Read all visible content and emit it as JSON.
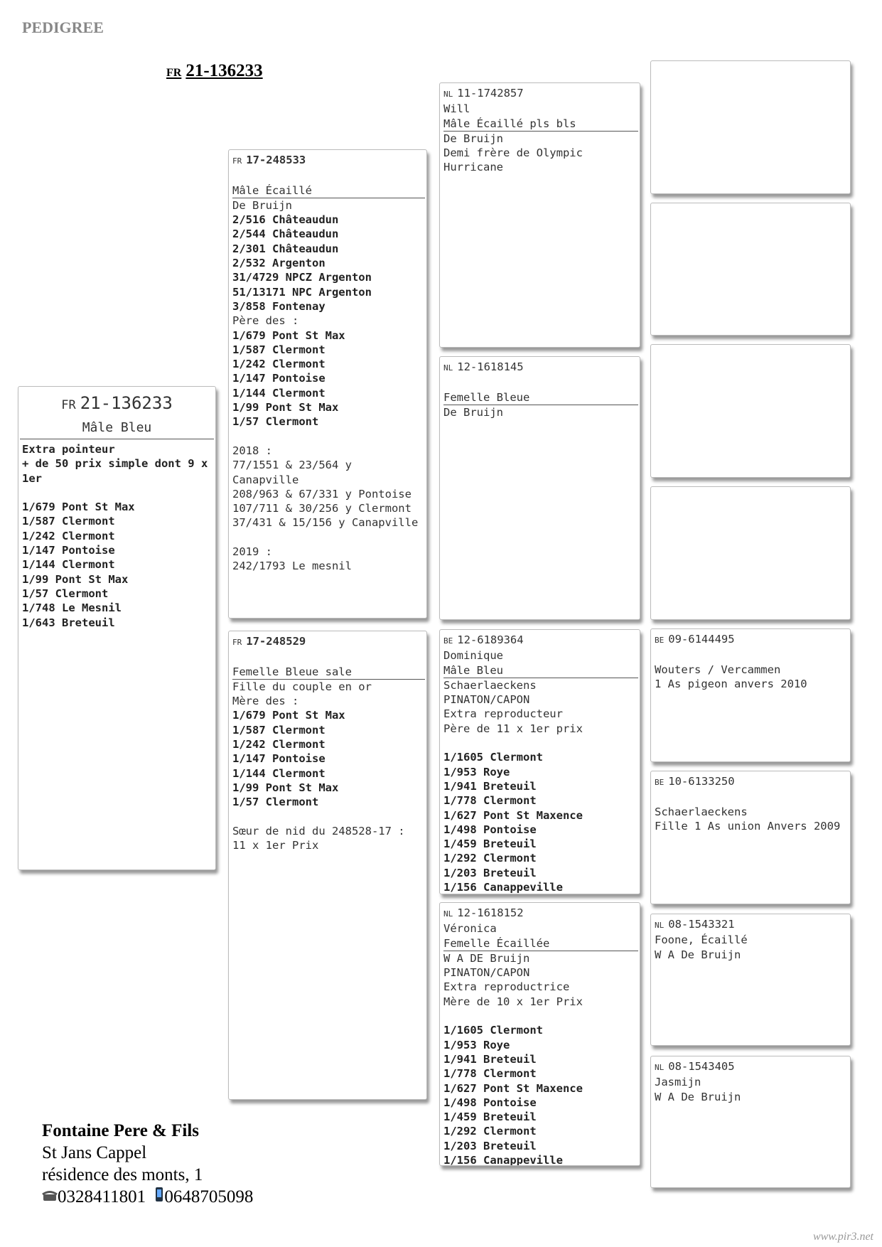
{
  "header": {
    "title": "PEDIGREE",
    "ring_prefix": "FR",
    "ring": "21-136233"
  },
  "subject": {
    "ring_prefix": "FR",
    "ring": "21-136233",
    "description": "Mâle Bleu",
    "paragraphs": [
      [
        {
          "text": "Extra pointeur",
          "bold": true
        },
        {
          "text": "+ de 50 prix simple dont 9 x 1er",
          "bold": true
        }
      ],
      [
        {
          "text": "1/679 Pont St Max",
          "bold": true
        },
        {
          "text": "1/587 Clermont",
          "bold": true
        },
        {
          "text": "1/242 Clermont",
          "bold": true
        },
        {
          "text": "1/147 Pontoise",
          "bold": true
        },
        {
          "text": "1/144 Clermont",
          "bold": true
        },
        {
          "text": "1/99 Pont St Max",
          "bold": true
        },
        {
          "text": "1/57 Clermont",
          "bold": true
        },
        {
          "text": "1/748 Le Mesnil",
          "bold": true
        },
        {
          "text": "1/643 Breteuil",
          "bold": true
        }
      ]
    ]
  },
  "sire": {
    "ring_prefix": "FR",
    "ring": "17-248533",
    "description": "Mâle Écaillé",
    "paragraphs": [
      [
        "De Bruijn",
        {
          "text": "2/516 Châteaudun",
          "bold": true
        },
        {
          "text": "2/544 Châteaudun",
          "bold": true
        },
        {
          "text": "2/301 Châteaudun",
          "bold": true
        },
        {
          "text": "2/532 Argenton",
          "bold": true
        },
        {
          "text": "31/4729 NPCZ Argenton",
          "bold": true
        },
        {
          "text": "51/13171 NPC Argenton",
          "bold": true
        },
        {
          "text": "3/858 Fontenay",
          "bold": true
        },
        "Père des :",
        {
          "text": "1/679 Pont St Max",
          "bold": true
        },
        {
          "text": "1/587 Clermont",
          "bold": true
        },
        {
          "text": "1/242 Clermont",
          "bold": true
        },
        {
          "text": "1/147 Pontoise",
          "bold": true
        },
        {
          "text": "1/144 Clermont",
          "bold": true
        },
        {
          "text": "1/99 Pont St Max",
          "bold": true
        },
        {
          "text": "1/57 Clermont",
          "bold": true
        }
      ],
      [
        "2018 :",
        "77/1551 & 23/564 y Canapville",
        "208/963 & 67/331 y Pontoise",
        "107/711 & 30/256 y Clermont",
        "37/431 & 15/156 y Canapville"
      ],
      [
        "2019 :",
        "242/1793 Le mesnil"
      ]
    ]
  },
  "dam": {
    "ring_prefix": "FR",
    "ring": "17-248529",
    "description": "Femelle Bleue sale",
    "paragraphs": [
      [
        "Fille du couple en or",
        "Mère des :",
        {
          "text": "1/679 Pont St Max",
          "bold": true
        },
        {
          "text": "1/587 Clermont",
          "bold": true
        },
        {
          "text": "1/242 Clermont",
          "bold": true
        },
        {
          "text": "1/147 Pontoise",
          "bold": true
        },
        {
          "text": "1/144 Clermont",
          "bold": true
        },
        {
          "text": "1/99 Pont St Max",
          "bold": true
        },
        {
          "text": "1/57 Clermont",
          "bold": true
        }
      ],
      [
        "Sœur de nid du 248528-17 : 11 x 1er Prix"
      ]
    ]
  },
  "sire_sire": {
    "ring_prefix": "NL",
    "ring": "11-1742857",
    "name": "Will",
    "description": "Mâle Écaillé pls bls",
    "paragraphs": [
      [
        "De Bruijn",
        "Demi frère de Olympic Hurricane"
      ]
    ]
  },
  "sire_dam": {
    "ring_prefix": "NL",
    "ring": "12-1618145",
    "description": "Femelle Bleue",
    "paragraphs": [
      [
        "De Bruijn"
      ]
    ]
  },
  "dam_sire": {
    "ring_prefix": "BE",
    "ring": "12-6189364",
    "name": "Dominique",
    "description": "Mâle Bleu",
    "paragraphs": [
      [
        "Schaerlaeckens",
        "PINATON/CAPON",
        "Extra reproducteur",
        "Père de 11 x 1er prix"
      ],
      [
        {
          "text": "1/1605 Clermont",
          "bold": true
        },
        {
          "text": "1/953 Roye",
          "bold": true
        },
        {
          "text": "1/941 Breteuil",
          "bold": true
        },
        {
          "text": "1/778 Clermont",
          "bold": true
        },
        {
          "text": "1/627 Pont St Maxence",
          "bold": true
        },
        {
          "text": "1/498 Pontoise",
          "bold": true
        },
        {
          "text": "1/459 Breteuil",
          "bold": true
        },
        {
          "text": "1/292 Clermont",
          "bold": true
        },
        {
          "text": "1/203 Breteuil",
          "bold": true
        },
        {
          "text": "1/156 Canappeville",
          "bold": true
        }
      ]
    ]
  },
  "dam_dam": {
    "ring_prefix": "NL",
    "ring": "12-1618152",
    "name": "Véronica",
    "description": "Femelle Écaillée",
    "paragraphs": [
      [
        "W A DE Bruijn",
        "PINATON/CAPON",
        "Extra reproductrice",
        "Mère de 10 x 1er Prix"
      ],
      [
        {
          "text": "1/1605 Clermont",
          "bold": true
        },
        {
          "text": "1/953 Roye",
          "bold": true
        },
        {
          "text": "1/941 Breteuil",
          "bold": true
        },
        {
          "text": "1/778 Clermont",
          "bold": true
        },
        {
          "text": "1/627 Pont St Maxence",
          "bold": true
        },
        {
          "text": "1/498 Pontoise",
          "bold": true
        },
        {
          "text": "1/459 Breteuil",
          "bold": true
        },
        {
          "text": "1/292 Clermont",
          "bold": true
        },
        {
          "text": "1/203 Breteuil",
          "bold": true
        },
        {
          "text": "1/156 Canappeville",
          "bold": true
        }
      ]
    ]
  },
  "dam_sire_sire": {
    "ring_prefix": "BE",
    "ring": "09-6144495",
    "paragraphs": [
      [
        "Wouters / Vercammen",
        "1 As pigeon anvers 2010"
      ]
    ]
  },
  "dam_sire_dam": {
    "ring_prefix": "BE",
    "ring": "10-6133250",
    "paragraphs": [
      [
        "Schaerlaeckens",
        "Fille 1 As union Anvers 2009"
      ]
    ]
  },
  "dam_dam_sire": {
    "ring_prefix": "NL",
    "ring": "08-1543321",
    "name": "Foone, Écaillé",
    "paragraphs": [
      [
        "W A De Bruijn"
      ]
    ]
  },
  "dam_dam_dam": {
    "ring_prefix": "NL",
    "ring": "08-1543405",
    "name": "Jasmijn",
    "paragraphs": [
      [
        "W A De Bruijn"
      ]
    ]
  },
  "footer": {
    "breeder": "Fontaine Pere & Fils",
    "town": "St Jans Cappel",
    "address": "résidence des monts, 1",
    "phone": "0328411801",
    "mobile": "0648705098",
    "website": "www.pir3.net"
  }
}
